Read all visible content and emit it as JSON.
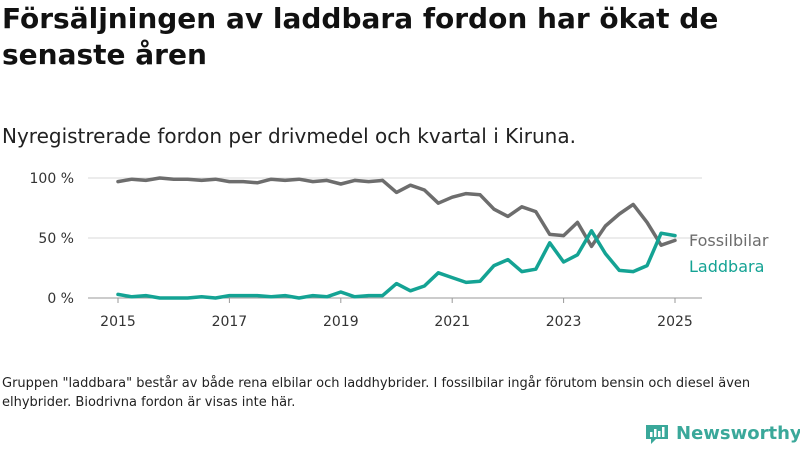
{
  "title": "Försäljningen av laddbara fordon har ökat de senaste åren",
  "subtitle": "Nyregistrerade fordon per drivmedel och kvartal i Kiruna.",
  "note": "Gruppen \"laddbara\" består av både rena elbilar och laddhybrider. I fossilbilar ingår förutom bensin och diesel även elhybrider. Biodrivna fordon är visas inte här.",
  "brand": "Newsworthy",
  "colors": {
    "fossil": "#6d6d6d",
    "laddbara": "#14a394",
    "grid": "#d9d9d9",
    "brand": "#3aa89a"
  },
  "chart_data": {
    "type": "line",
    "title": "Försäljningen av laddbara fordon har ökat de senaste åren",
    "subtitle": "Nyregistrerade fordon per drivmedel och kvartal i Kiruna.",
    "xlim": [
      2015,
      2025.125
    ],
    "ylim": [
      0,
      100
    ],
    "x_ticks": [
      "2015",
      "2017",
      "2019",
      "2021",
      "2023",
      "2025"
    ],
    "y_ticks": [
      {
        "value": 0,
        "label": "0 %"
      },
      {
        "value": 50,
        "label": "50 %"
      },
      {
        "value": 100,
        "label": "100 %"
      }
    ],
    "grid": true,
    "x": [
      2015.0,
      2015.25,
      2015.5,
      2015.75,
      2016.0,
      2016.25,
      2016.5,
      2016.75,
      2017.0,
      2017.25,
      2017.5,
      2017.75,
      2018.0,
      2018.25,
      2018.5,
      2018.75,
      2019.0,
      2019.25,
      2019.5,
      2019.75,
      2020.0,
      2020.25,
      2020.5,
      2020.75,
      2021.0,
      2021.25,
      2021.5,
      2021.75,
      2022.0,
      2022.25,
      2022.5,
      2022.75,
      2023.0,
      2023.25,
      2023.5,
      2023.75,
      2024.0,
      2024.25,
      2024.5,
      2024.75,
      2025.0
    ],
    "series": [
      {
        "name": "Fossilbilar",
        "color": "#6d6d6d",
        "values": [
          97,
          99,
          98,
          100,
          99,
          99,
          98,
          99,
          97,
          97,
          96,
          99,
          98,
          99,
          97,
          98,
          95,
          98,
          97,
          98,
          88,
          94,
          90,
          79,
          84,
          87,
          86,
          74,
          68,
          76,
          72,
          53,
          52,
          63,
          43,
          60,
          70,
          78,
          63,
          44,
          48
        ]
      },
      {
        "name": "Laddbara",
        "color": "#14a394",
        "values": [
          3,
          1,
          2,
          0,
          0,
          0,
          1,
          0,
          2,
          2,
          2,
          1,
          2,
          0,
          2,
          1,
          5,
          1,
          2,
          2,
          12,
          6,
          10,
          21,
          17,
          13,
          14,
          27,
          32,
          22,
          24,
          46,
          30,
          36,
          56,
          37,
          23,
          22,
          27,
          54,
          52
        ]
      }
    ]
  }
}
